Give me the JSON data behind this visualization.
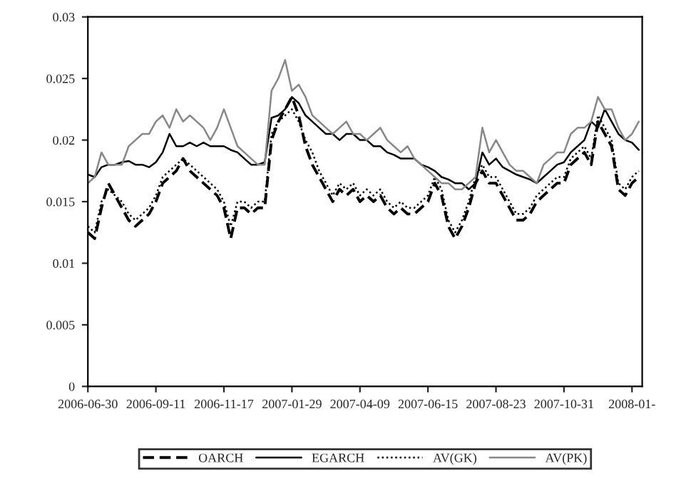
{
  "chart_data": {
    "type": "line",
    "categories": [
      "2006-06-30",
      null,
      null,
      null,
      null,
      null,
      null,
      null,
      null,
      null,
      "2006-09-11",
      null,
      null,
      null,
      null,
      null,
      null,
      null,
      null,
      null,
      "2006-11-17",
      null,
      null,
      null,
      null,
      null,
      null,
      null,
      null,
      null,
      "2007-01-29",
      null,
      null,
      null,
      null,
      null,
      null,
      null,
      null,
      null,
      "2007-04-09",
      null,
      null,
      null,
      null,
      null,
      null,
      null,
      null,
      null,
      "2007-06-15",
      null,
      null,
      null,
      null,
      null,
      null,
      null,
      null,
      null,
      "2007-08-23",
      null,
      null,
      null,
      null,
      null,
      null,
      null,
      null,
      null,
      "2007-10-31",
      null,
      null,
      null,
      null,
      null,
      null,
      null,
      null,
      null,
      "2008-01-",
      null
    ],
    "series": [
      {
        "name": "OARCH",
        "color": "#000000",
        "line_style": "dashed",
        "values": [
          0.0125,
          0.012,
          0.0145,
          0.0165,
          0.0155,
          0.0145,
          0.0135,
          0.013,
          0.0135,
          0.014,
          0.015,
          0.0165,
          0.017,
          0.0175,
          0.0185,
          0.0175,
          0.017,
          0.0165,
          0.016,
          0.0155,
          0.0145,
          0.012,
          0.0145,
          0.0145,
          0.014,
          0.0145,
          0.0145,
          0.02,
          0.0215,
          0.0225,
          0.0235,
          0.022,
          0.0195,
          0.018,
          0.017,
          0.016,
          0.015,
          0.016,
          0.0155,
          0.016,
          0.015,
          0.0155,
          0.015,
          0.0155,
          0.0145,
          0.014,
          0.0145,
          0.014,
          0.014,
          0.0145,
          0.015,
          0.0165,
          0.0155,
          0.013,
          0.012,
          0.013,
          0.0145,
          0.0165,
          0.0175,
          0.0165,
          0.0165,
          0.0155,
          0.0145,
          0.0135,
          0.0135,
          0.014,
          0.015,
          0.0155,
          0.016,
          0.0165,
          0.0165,
          0.018,
          0.0185,
          0.019,
          0.018,
          0.0215,
          0.0205,
          0.0195,
          0.016,
          0.0155,
          0.0165,
          0.017
        ]
      },
      {
        "name": "EGARCH",
        "color": "#000000",
        "line_style": "solid",
        "values": [
          0.0172,
          0.017,
          0.0178,
          0.018,
          0.018,
          0.0182,
          0.0183,
          0.018,
          0.018,
          0.0178,
          0.0182,
          0.019,
          0.0205,
          0.0195,
          0.0195,
          0.0198,
          0.0195,
          0.0198,
          0.0195,
          0.0195,
          0.0195,
          0.0192,
          0.019,
          0.0185,
          0.018,
          0.018,
          0.0182,
          0.0218,
          0.022,
          0.0225,
          0.0235,
          0.023,
          0.022,
          0.0215,
          0.021,
          0.0205,
          0.0205,
          0.02,
          0.0205,
          0.0205,
          0.02,
          0.02,
          0.0195,
          0.0195,
          0.019,
          0.0188,
          0.0185,
          0.0185,
          0.0185,
          0.018,
          0.0178,
          0.0175,
          0.017,
          0.0168,
          0.0165,
          0.0165,
          0.016,
          0.0165,
          0.019,
          0.018,
          0.0185,
          0.0178,
          0.0175,
          0.0172,
          0.017,
          0.0168,
          0.0165,
          0.017,
          0.0175,
          0.018,
          0.0182,
          0.019,
          0.0195,
          0.02,
          0.0215,
          0.021,
          0.0225,
          0.0215,
          0.0205,
          0.02,
          0.0198,
          0.0192
        ]
      },
      {
        "name": "AV(GK)",
        "color": "#000000",
        "line_style": "dotted",
        "values": [
          0.013,
          0.0125,
          0.015,
          0.016,
          0.0155,
          0.015,
          0.014,
          0.0135,
          0.014,
          0.0145,
          0.0155,
          0.017,
          0.0175,
          0.018,
          0.0185,
          0.018,
          0.0175,
          0.017,
          0.0165,
          0.016,
          0.015,
          0.013,
          0.015,
          0.015,
          0.0145,
          0.015,
          0.015,
          0.0205,
          0.0215,
          0.022,
          0.0225,
          0.0215,
          0.02,
          0.019,
          0.0175,
          0.0165,
          0.0155,
          0.0165,
          0.016,
          0.0165,
          0.0155,
          0.016,
          0.0155,
          0.016,
          0.015,
          0.0145,
          0.015,
          0.0145,
          0.0145,
          0.015,
          0.0155,
          0.017,
          0.016,
          0.0135,
          0.0125,
          0.0135,
          0.015,
          0.017,
          0.018,
          0.017,
          0.017,
          0.016,
          0.015,
          0.014,
          0.014,
          0.0145,
          0.0155,
          0.016,
          0.0165,
          0.017,
          0.017,
          0.0185,
          0.019,
          0.0195,
          0.0185,
          0.022,
          0.021,
          0.02,
          0.0165,
          0.016,
          0.017,
          0.0175
        ]
      },
      {
        "name": "AV(PK)",
        "color": "#888888",
        "line_style": "solid",
        "values": [
          0.0165,
          0.017,
          0.019,
          0.018,
          0.018,
          0.018,
          0.0195,
          0.02,
          0.0205,
          0.0205,
          0.0215,
          0.022,
          0.021,
          0.0225,
          0.0215,
          0.022,
          0.0215,
          0.021,
          0.02,
          0.021,
          0.0225,
          0.021,
          0.0195,
          0.019,
          0.0185,
          0.018,
          0.018,
          0.024,
          0.025,
          0.0265,
          0.024,
          0.0245,
          0.0235,
          0.022,
          0.0215,
          0.021,
          0.0205,
          0.021,
          0.0215,
          0.0205,
          0.0205,
          0.02,
          0.0205,
          0.021,
          0.02,
          0.0195,
          0.019,
          0.0195,
          0.0185,
          0.018,
          0.0175,
          0.017,
          0.0165,
          0.0165,
          0.016,
          0.016,
          0.0165,
          0.017,
          0.021,
          0.019,
          0.02,
          0.019,
          0.018,
          0.0175,
          0.0175,
          0.017,
          0.0165,
          0.018,
          0.0185,
          0.019,
          0.019,
          0.0205,
          0.021,
          0.021,
          0.0215,
          0.0235,
          0.0225,
          0.0225,
          0.021,
          0.02,
          0.0205,
          0.0215
        ]
      }
    ],
    "ylim": [
      0,
      0.03
    ],
    "yticks": [
      0,
      0.005,
      0.01,
      0.015,
      0.02,
      0.025,
      0.03
    ],
    "grid": false,
    "legend": "bottom"
  }
}
